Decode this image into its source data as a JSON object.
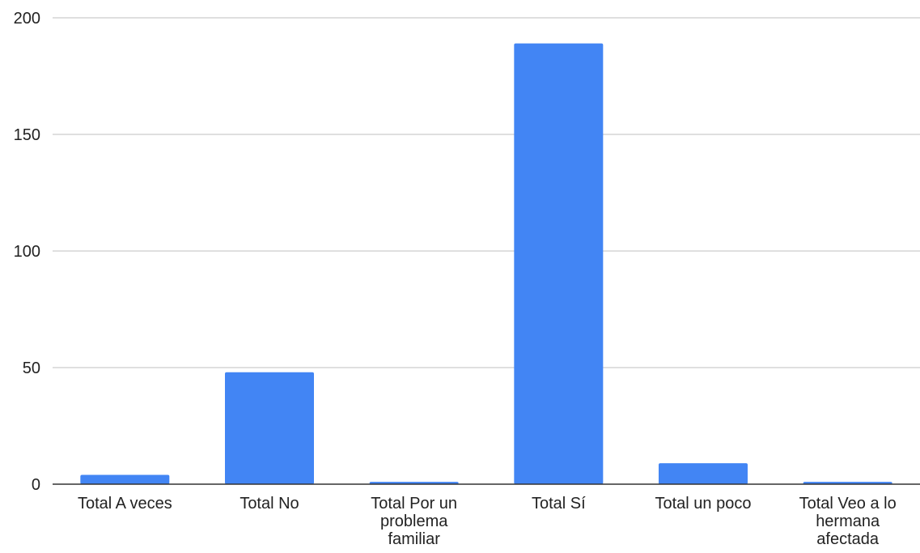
{
  "chart_data": {
    "type": "bar",
    "categories": [
      "Total A veces",
      "Total No",
      "Total Por un problema familiar",
      "Total Sí",
      "Total un poco",
      "Total Veo a lo hermana afectada"
    ],
    "category_label_lines": [
      [
        "Total A veces"
      ],
      [
        "Total No"
      ],
      [
        "Total Por un",
        "problema",
        "familiar"
      ],
      [
        "Total Sí"
      ],
      [
        "Total un poco"
      ],
      [
        "Total Veo a lo",
        "hermana",
        "afectada"
      ]
    ],
    "values": [
      4,
      48,
      1,
      189,
      9,
      1
    ],
    "ylim": [
      0,
      200
    ],
    "y_ticks": [
      0,
      50,
      100,
      150,
      200
    ],
    "grid": true,
    "title": "",
    "xlabel": "",
    "ylabel": "",
    "colors": {
      "bar": "#4285f4",
      "grid": "#cccccc",
      "axis": "#333333",
      "text": "#222222"
    }
  }
}
